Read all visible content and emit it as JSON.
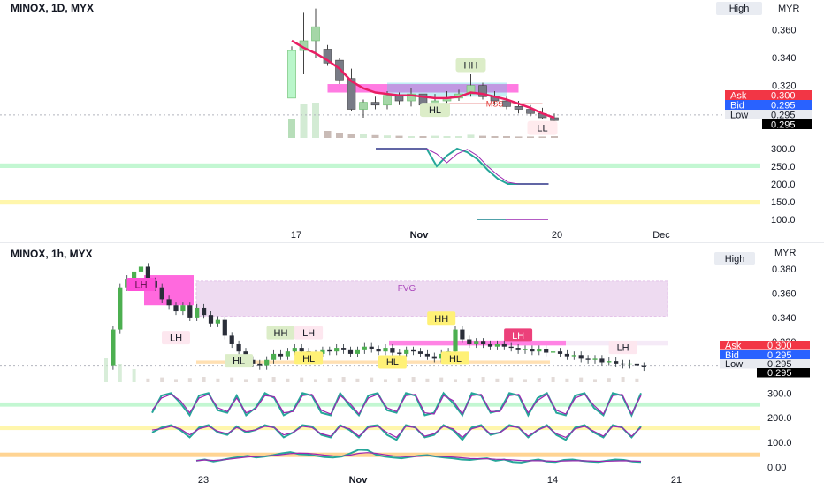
{
  "colors": {
    "up": "#a5d6a7",
    "up_strong": "#4caf50",
    "down": "#787b86",
    "down_strong": "#2a2e39",
    "ema": "#e91e63",
    "teal": "#26a69a",
    "purple": "#9c27b0",
    "green_line": "#2e7d32",
    "ask": "#f23645",
    "bid": "#2962ff",
    "magenta_box": "#ff4fd8",
    "fvg": "#e1bee7",
    "green_band": "#b9f6ca",
    "yellow_band": "#fff59d",
    "orange_band": "#ffcc80"
  },
  "chart_data": [
    {
      "type": "candlestick",
      "title": "MINOX, 1D, MYX",
      "currency": "MYX",
      "currency_label": "MYR",
      "mode_button": "High",
      "ylim": [
        0.285,
        0.376
      ],
      "y_ticks": [
        "0.360",
        "0.340",
        "0.320"
      ],
      "x_ticks": [
        "17",
        "Nov",
        "20",
        "Dec"
      ],
      "candles": [
        {
          "o": 0.311,
          "h": 0.348,
          "l": 0.311,
          "c": 0.345
        },
        {
          "o": 0.345,
          "h": 0.372,
          "l": 0.328,
          "c": 0.352
        },
        {
          "o": 0.352,
          "h": 0.375,
          "l": 0.34,
          "c": 0.362
        },
        {
          "o": 0.346,
          "h": 0.349,
          "l": 0.334,
          "c": 0.336
        },
        {
          "o": 0.338,
          "h": 0.34,
          "l": 0.321,
          "c": 0.324
        },
        {
          "o": 0.325,
          "h": 0.332,
          "l": 0.302,
          "c": 0.303
        },
        {
          "o": 0.303,
          "h": 0.31,
          "l": 0.297,
          "c": 0.308
        },
        {
          "o": 0.308,
          "h": 0.312,
          "l": 0.303,
          "c": 0.306
        },
        {
          "o": 0.306,
          "h": 0.316,
          "l": 0.303,
          "c": 0.313
        },
        {
          "o": 0.313,
          "h": 0.315,
          "l": 0.306,
          "c": 0.309
        },
        {
          "o": 0.309,
          "h": 0.318,
          "l": 0.305,
          "c": 0.314
        },
        {
          "o": 0.314,
          "h": 0.317,
          "l": 0.305,
          "c": 0.306
        },
        {
          "o": 0.306,
          "h": 0.314,
          "l": 0.302,
          "c": 0.309
        },
        {
          "o": 0.309,
          "h": 0.316,
          "l": 0.305,
          "c": 0.311
        },
        {
          "o": 0.311,
          "h": 0.317,
          "l": 0.309,
          "c": 0.314
        },
        {
          "o": 0.314,
          "h": 0.328,
          "l": 0.312,
          "c": 0.32
        },
        {
          "o": 0.32,
          "h": 0.322,
          "l": 0.31,
          "c": 0.312
        },
        {
          "o": 0.312,
          "h": 0.316,
          "l": 0.306,
          "c": 0.309
        },
        {
          "o": 0.309,
          "h": 0.312,
          "l": 0.303,
          "c": 0.305
        },
        {
          "o": 0.305,
          "h": 0.309,
          "l": 0.3,
          "c": 0.303
        },
        {
          "o": 0.303,
          "h": 0.306,
          "l": 0.298,
          "c": 0.3
        },
        {
          "o": 0.3,
          "h": 0.304,
          "l": 0.296,
          "c": 0.297
        },
        {
          "o": 0.297,
          "h": 0.3,
          "l": 0.294,
          "c": 0.295
        }
      ],
      "ema": [
        0.352,
        0.347,
        0.343,
        0.338,
        0.332,
        0.323,
        0.318,
        0.315,
        0.314,
        0.313,
        0.313,
        0.312,
        0.311,
        0.311,
        0.312,
        0.315,
        0.314,
        0.312,
        0.31,
        0.307,
        0.304,
        0.3,
        0.297
      ],
      "annotations": [
        {
          "text": "HH",
          "bar": 15,
          "value": 0.334
        },
        {
          "text": "HL",
          "bar": 12,
          "value": 0.302
        },
        {
          "text": "MSS",
          "bar": 17,
          "value": 0.305
        },
        {
          "text": "LL",
          "bar": 21,
          "value": 0.289
        }
      ],
      "price_boxes": [
        {
          "label": "Ask",
          "value": "0.300"
        },
        {
          "label": "Bid",
          "value": "0.295"
        },
        {
          "label": "Low",
          "value": "0.295"
        },
        {
          "label": "",
          "value": "0.295"
        }
      ],
      "volume": [
        0.55,
        0.95,
        1.0,
        0.2,
        0.15,
        0.12,
        0.1,
        0.08,
        0.07,
        0.06,
        0.05,
        0.05,
        0.06,
        0.05,
        0.05,
        0.09,
        0.06,
        0.05,
        0.05,
        0.04,
        0.04,
        0.04,
        0.05
      ]
    },
    {
      "type": "line",
      "title": "",
      "ylim": [
        80,
        320
      ],
      "y_ticks": [
        "300.0",
        "250.0",
        "200.0",
        "150.0",
        "100.0"
      ],
      "bands": [
        {
          "from": 245,
          "to": 258,
          "color": "green"
        },
        {
          "from": 142,
          "to": 155,
          "color": "yellow"
        }
      ],
      "series": [
        {
          "color": "teal",
          "values": [
            300,
            300,
            300,
            300,
            300,
            300,
            250,
            280,
            300,
            290,
            270,
            240,
            215,
            200,
            200,
            200,
            200,
            200
          ]
        },
        {
          "color": "purple",
          "values": [
            300,
            300,
            300,
            300,
            300,
            300,
            285,
            260,
            285,
            298,
            280,
            250,
            225,
            205,
            200,
            200,
            200,
            200
          ]
        }
      ],
      "series2_start_bar": 5,
      "bottom_line": {
        "values": [
          100,
          100,
          100,
          100,
          100,
          100
        ],
        "start_bar": 12
      }
    },
    {
      "type": "candlestick",
      "title": "MINOX, 1h, MYX",
      "currency_label": "MYR",
      "mode_button": "High",
      "ylim": [
        0.288,
        0.386
      ],
      "y_ticks": [
        "0.380",
        "0.360",
        "0.340",
        "0.320"
      ],
      "x_ticks": [
        "23",
        "Nov",
        "14",
        "21"
      ],
      "fvg_label": "FVG",
      "close_path": [
        0.3,
        0.33,
        0.365,
        0.372,
        0.378,
        0.382,
        0.37,
        0.365,
        0.355,
        0.35,
        0.345,
        0.35,
        0.34,
        0.348,
        0.342,
        0.335,
        0.338,
        0.325,
        0.318,
        0.312,
        0.305,
        0.302,
        0.3,
        0.305,
        0.31,
        0.308,
        0.312,
        0.315,
        0.312,
        0.308,
        0.31,
        0.313,
        0.312,
        0.315,
        0.313,
        0.31,
        0.313,
        0.316,
        0.314,
        0.312,
        0.315,
        0.311,
        0.31,
        0.313,
        0.312,
        0.31,
        0.308,
        0.306,
        0.31,
        0.312,
        0.33,
        0.322,
        0.318,
        0.32,
        0.318,
        0.316,
        0.318,
        0.316,
        0.315,
        0.313,
        0.314,
        0.312,
        0.314,
        0.311,
        0.312,
        0.31,
        0.308,
        0.309,
        0.306,
        0.305,
        0.306,
        0.303,
        0.304,
        0.302,
        0.301,
        0.302,
        0.3,
        0.299
      ],
      "annotations": [
        {
          "text": "LH",
          "bar": 5,
          "value": 0.367,
          "style": "magenta"
        },
        {
          "text": "LH",
          "bar": 10,
          "value": 0.323,
          "style": "pink"
        },
        {
          "text": "HH",
          "bar": 25,
          "value": 0.327,
          "style": "green"
        },
        {
          "text": "LH",
          "bar": 29,
          "value": 0.327,
          "style": "pink"
        },
        {
          "text": "HL",
          "bar": 19,
          "value": 0.304,
          "style": "green"
        },
        {
          "text": "HL",
          "bar": 29,
          "value": 0.306,
          "style": "yellow"
        },
        {
          "text": "HL",
          "bar": 41,
          "value": 0.303,
          "style": "yellow"
        },
        {
          "text": "HH",
          "bar": 48,
          "value": 0.339,
          "style": "yellow"
        },
        {
          "text": "HL",
          "bar": 50,
          "value": 0.306,
          "style": "yellow"
        },
        {
          "text": "LH",
          "bar": 59,
          "value": 0.325,
          "style": "red"
        },
        {
          "text": "LH",
          "bar": 74,
          "value": 0.315,
          "style": "pink"
        }
      ],
      "price_boxes": [
        {
          "label": "Ask",
          "value": "0.300"
        },
        {
          "label": "Bid",
          "value": "0.295"
        },
        {
          "label": "Low",
          "value": "0.295"
        },
        {
          "label": "",
          "value": "0.295"
        }
      ]
    },
    {
      "type": "line",
      "title": "",
      "ylim": [
        -15,
        330
      ],
      "y_ticks": [
        "300.0",
        "200.0",
        "100.0",
        "0.00"
      ],
      "bands": [
        {
          "from": 245,
          "to": 262,
          "color": "green"
        },
        {
          "from": 150,
          "to": 168,
          "color": "yellow"
        },
        {
          "from": 40,
          "to": 58,
          "color": "orange"
        }
      ],
      "series": [
        {
          "color": "teal",
          "values": [
            220,
            290,
            300,
            260,
            210,
            290,
            300,
            230,
            220,
            290,
            210,
            240,
            300,
            280,
            210,
            230,
            300,
            290,
            220,
            210,
            300,
            250,
            210,
            290,
            300,
            230,
            220,
            300,
            290,
            210,
            220,
            300,
            260,
            210,
            300,
            290,
            220,
            230,
            300,
            290,
            210,
            280,
            300,
            220,
            210,
            290,
            300,
            240,
            210,
            300,
            290,
            210,
            300
          ]
        },
        {
          "color": "purple",
          "values": [
            230,
            280,
            295,
            270,
            220,
            280,
            295,
            240,
            225,
            280,
            220,
            235,
            290,
            285,
            220,
            225,
            290,
            295,
            230,
            215,
            290,
            260,
            215,
            280,
            295,
            240,
            225,
            290,
            295,
            220,
            215,
            290,
            270,
            215,
            290,
            295,
            225,
            225,
            290,
            295,
            220,
            270,
            295,
            230,
            215,
            280,
            295,
            250,
            215,
            290,
            295,
            215,
            290
          ]
        },
        {
          "color": "teal",
          "values": [
            140,
            160,
            170,
            150,
            120,
            160,
            170,
            140,
            130,
            165,
            140,
            150,
            170,
            160,
            120,
            140,
            170,
            165,
            130,
            120,
            170,
            150,
            120,
            165,
            170,
            130,
            110,
            170,
            160,
            120,
            130,
            170,
            150,
            110,
            160,
            170,
            130,
            140,
            170,
            160,
            120,
            150,
            170,
            130,
            110,
            160,
            170,
            140,
            120,
            170,
            160,
            120,
            165
          ]
        },
        {
          "color": "purple",
          "values": [
            150,
            155,
            165,
            155,
            130,
            155,
            165,
            145,
            135,
            160,
            145,
            150,
            165,
            160,
            130,
            140,
            165,
            160,
            135,
            125,
            165,
            155,
            125,
            160,
            165,
            140,
            120,
            165,
            160,
            125,
            135,
            165,
            155,
            120,
            155,
            165,
            135,
            140,
            165,
            160,
            125,
            150,
            165,
            135,
            120,
            155,
            165,
            145,
            125,
            165,
            160,
            125,
            160
          ]
        },
        {
          "color": "teal",
          "values": [
            25,
            30,
            22,
            28,
            35,
            40,
            45,
            38,
            42,
            48,
            55,
            60,
            52,
            50,
            45,
            40,
            38,
            42,
            55,
            70,
            68,
            50,
            42,
            38,
            35,
            40,
            45,
            48,
            42,
            38,
            35,
            30,
            28,
            32,
            35,
            25,
            30,
            20,
            18,
            25,
            30,
            22,
            20,
            28,
            30,
            25,
            22,
            20,
            25,
            30,
            28,
            22,
            20
          ]
        },
        {
          "color": "purple",
          "values": [
            25,
            28,
            26,
            28,
            32,
            36,
            40,
            42,
            44,
            46,
            50,
            54,
            56,
            55,
            52,
            48,
            45,
            44,
            48,
            55,
            58,
            55,
            50,
            45,
            42,
            42,
            43,
            45,
            44,
            42,
            40,
            37,
            34,
            33,
            33,
            31,
            30,
            28,
            26,
            25,
            25,
            24,
            23,
            24,
            25,
            25,
            24,
            23,
            23,
            24,
            25,
            24,
            23
          ]
        }
      ]
    }
  ]
}
